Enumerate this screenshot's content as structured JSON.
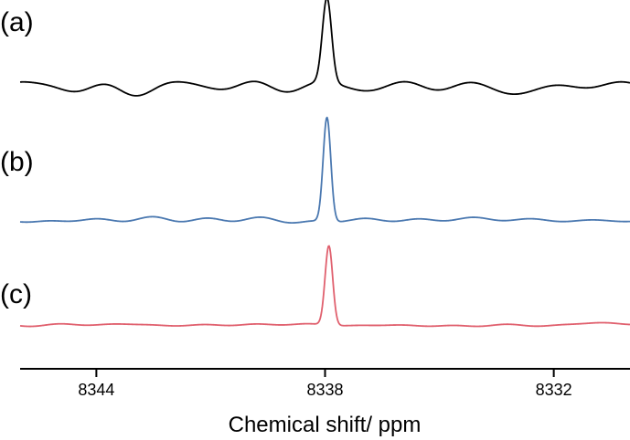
{
  "chart_data": {
    "type": "line",
    "xlabel": "Chemical shift/ ppm",
    "ylabel": "",
    "xlim": [
      8346.0,
      8330.0
    ],
    "x_reversed": true,
    "grid": false,
    "ticks": [
      {
        "value": 8344,
        "label": "8344"
      },
      {
        "value": 8338,
        "label": "8338"
      },
      {
        "value": 8332,
        "label": "8332"
      }
    ],
    "series": [
      {
        "label": "(a)",
        "color": "#000000",
        "peak_center": 8337.95,
        "peak_width": 0.12,
        "peak_height": 1.0,
        "noise_level": 0.09,
        "x": [
          8346.0,
          8345.2,
          8344.4,
          8343.6,
          8342.8,
          8342.0,
          8341.2,
          8340.4,
          8339.6,
          8338.8,
          8338.2,
          8338.05,
          8337.95,
          8337.85,
          8337.7,
          8337.2,
          8336.4,
          8335.6,
          8334.8,
          8334.0,
          8333.2,
          8332.4,
          8331.6,
          8330.8,
          8330.0
        ],
        "y": [
          0.02,
          -0.05,
          0.06,
          -0.04,
          0.05,
          -0.06,
          0.04,
          -0.03,
          0.05,
          0.03,
          0.12,
          0.55,
          1.0,
          0.55,
          0.1,
          -0.02,
          0.04,
          -0.06,
          0.05,
          -0.04,
          0.03,
          -0.05,
          0.06,
          -0.02,
          0.0
        ]
      },
      {
        "label": "(b)",
        "color": "#4a78b0",
        "peak_center": 8337.95,
        "peak_width": 0.1,
        "peak_height": 1.0,
        "noise_level": 0.025,
        "x": [
          8346.0,
          8344.0,
          8342.0,
          8340.0,
          8338.6,
          8338.2,
          8338.05,
          8337.95,
          8337.85,
          8337.7,
          8337.3,
          8336.0,
          8334.0,
          8332.0,
          8330.0
        ],
        "y": [
          0.0,
          0.01,
          -0.01,
          0.01,
          0.03,
          0.1,
          0.6,
          1.0,
          0.6,
          0.12,
          0.02,
          0.0,
          0.01,
          -0.01,
          0.01
        ]
      },
      {
        "label": "(c)",
        "color": "#e0606e",
        "peak_center": 8337.9,
        "peak_width": 0.1,
        "peak_height": 1.0,
        "noise_level": 0.025,
        "x": [
          8346.0,
          8344.0,
          8342.0,
          8340.0,
          8339.0,
          8338.5,
          8338.1,
          8337.95,
          8337.9,
          8337.8,
          8337.65,
          8337.3,
          8336.0,
          8334.0,
          8332.0,
          8330.0
        ],
        "y": [
          0.0,
          0.01,
          0.01,
          0.02,
          0.05,
          0.07,
          0.3,
          0.9,
          1.0,
          0.6,
          0.06,
          0.03,
          0.01,
          0.0,
          -0.01,
          0.0
        ]
      }
    ]
  }
}
